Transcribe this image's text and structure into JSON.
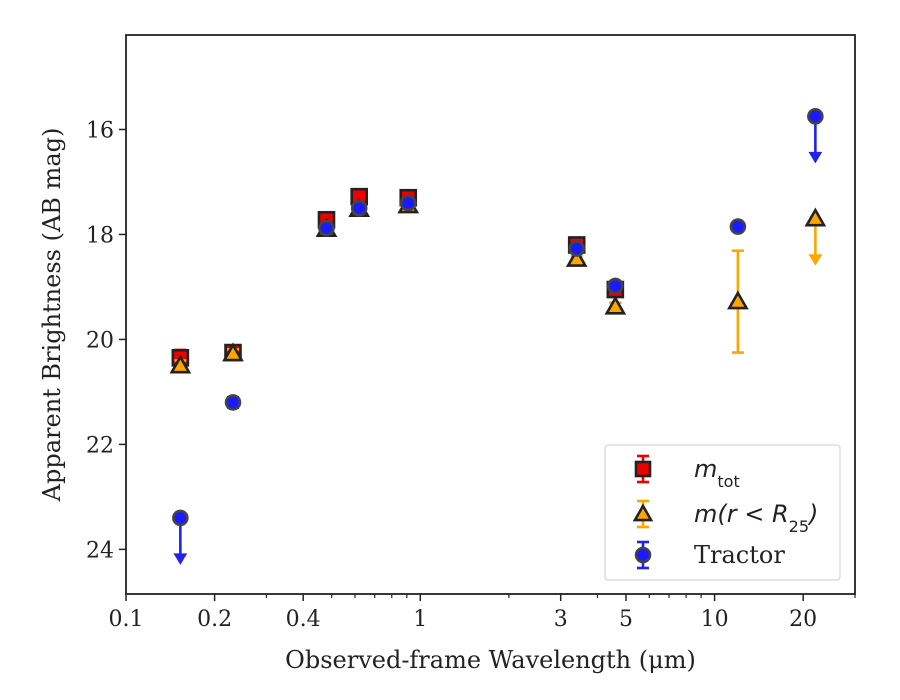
{
  "chart_data": {
    "type": "scatter",
    "xlabel": "Observed-frame Wavelength (μm)",
    "ylabel": "Apparent Brightness (AB mag)",
    "x_scale": "log",
    "xlim": [
      0.1,
      30
    ],
    "ylim": [
      24.85,
      14.2
    ],
    "y_inverted": true,
    "x_ticks": [
      0.1,
      0.2,
      0.4,
      1,
      3,
      5,
      10,
      20
    ],
    "x_tick_labels": [
      "0.1",
      "0.2",
      "0.4",
      "1",
      "3",
      "5",
      "10",
      "20"
    ],
    "y_ticks": [
      16,
      18,
      20,
      22,
      24
    ],
    "y_tick_labels": [
      "16",
      "18",
      "20",
      "22",
      "24"
    ],
    "grid": false,
    "legend_position": "lower-right",
    "series": [
      {
        "name": "m_tot",
        "label_main": "m",
        "label_sub": "tot",
        "marker": "square",
        "color": "#ee0000",
        "edge_color": "#222222",
        "error_color": "#ee0000",
        "points": [
          {
            "x": 0.153,
            "y": 20.35,
            "yerr": 0.15
          },
          {
            "x": 0.231,
            "y": 20.25,
            "yerr": 0.12
          },
          {
            "x": 0.48,
            "y": 17.72,
            "yerr": 0.05
          },
          {
            "x": 0.62,
            "y": 17.28,
            "yerr": 0.05
          },
          {
            "x": 0.91,
            "y": 17.3,
            "yerr": 0.05
          },
          {
            "x": 3.4,
            "y": 18.2,
            "yerr": 0.05
          },
          {
            "x": 4.6,
            "y": 19.05,
            "yerr": 0.05
          }
        ]
      },
      {
        "name": "m(r < R_25)",
        "label_main": "m(r < R",
        "label_sub": "25",
        "label_end": ")",
        "marker": "triangle",
        "color": "#ffa500",
        "edge_color": "#222222",
        "error_color": "#ffa500",
        "points": [
          {
            "x": 0.153,
            "y": 20.5,
            "yerr": 0.1
          },
          {
            "x": 0.231,
            "y": 20.27,
            "yerr": 0.08
          },
          {
            "x": 0.48,
            "y": 17.9,
            "yerr": 0.05
          },
          {
            "x": 0.62,
            "y": 17.52,
            "yerr": 0.05
          },
          {
            "x": 0.91,
            "y": 17.45,
            "yerr": 0.05
          },
          {
            "x": 3.4,
            "y": 18.47,
            "yerr": 0.05
          },
          {
            "x": 4.6,
            "y": 19.38,
            "yerr": 0.08
          },
          {
            "x": 12.0,
            "y": 19.28,
            "yerr": 0.97
          },
          {
            "x": 22.0,
            "y": 17.7,
            "upper_limit": true
          }
        ]
      },
      {
        "name": "Tractor",
        "marker": "circle",
        "color": "#1a1aff",
        "edge_color": "#444444",
        "error_color": "#2222ee",
        "points": [
          {
            "x": 0.153,
            "y": 23.4,
            "upper_limit": true
          },
          {
            "x": 0.231,
            "y": 21.2,
            "yerr": 0.1
          },
          {
            "x": 0.48,
            "y": 17.88,
            "yerr": 0.05
          },
          {
            "x": 0.62,
            "y": 17.5,
            "yerr": 0.05
          },
          {
            "x": 0.91,
            "y": 17.4,
            "yerr": 0.05
          },
          {
            "x": 3.4,
            "y": 18.27,
            "yerr": 0.05
          },
          {
            "x": 4.6,
            "y": 18.98,
            "yerr": 0.05
          },
          {
            "x": 12.0,
            "y": 17.85,
            "yerr": 0.05
          },
          {
            "x": 22.0,
            "y": 15.75,
            "upper_limit": true
          }
        ]
      }
    ]
  }
}
